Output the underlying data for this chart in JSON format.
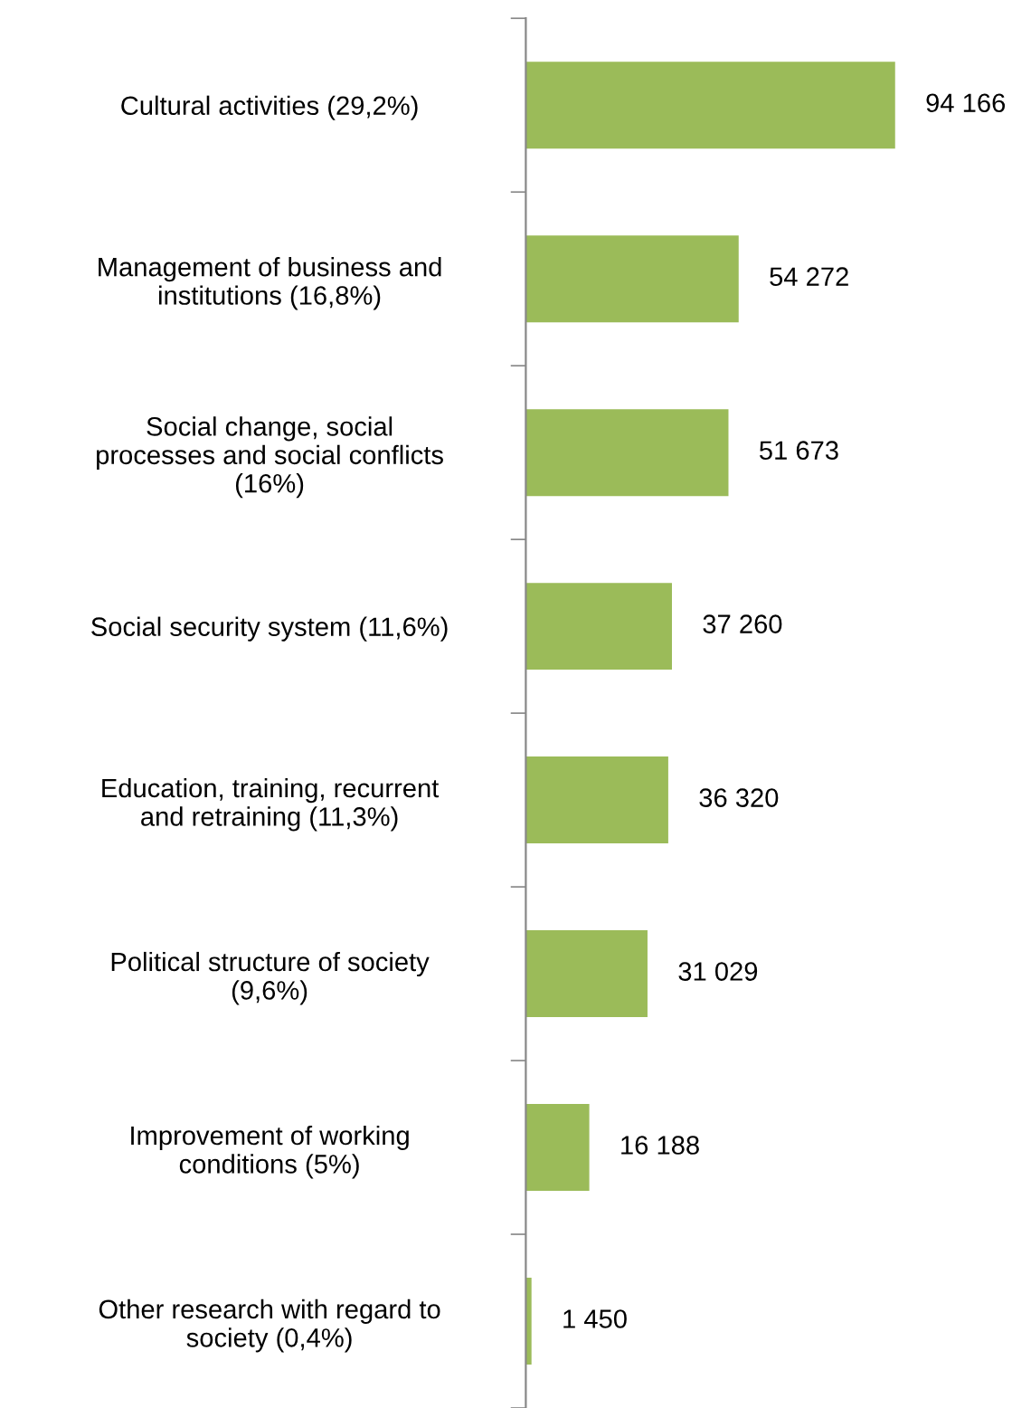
{
  "chart_data": {
    "type": "bar",
    "orientation": "horizontal",
    "categories": [
      "Cultural activities (29,2%)",
      "Management of business and\ninstitutions (16,8%)",
      "Social change, social\nprocesses and social conflicts\n(16%)",
      "Social security system (11,6%)",
      "Education, training, recurrent\nand retraining (11,3%)",
      "Political structure of society\n(9,6%)",
      "Improvement of working\nconditions (5%)",
      "Other research with regard to\nsociety (0,4%)"
    ],
    "values": [
      94166,
      54272,
      51673,
      37260,
      36320,
      31029,
      16188,
      1450
    ],
    "value_labels": [
      "94 166",
      "54 272",
      "51 673",
      "37 260",
      "36 320",
      "31 029",
      "16 188",
      "1 450"
    ],
    "color": "#9bbb59",
    "grid": false,
    "legend": false
  }
}
